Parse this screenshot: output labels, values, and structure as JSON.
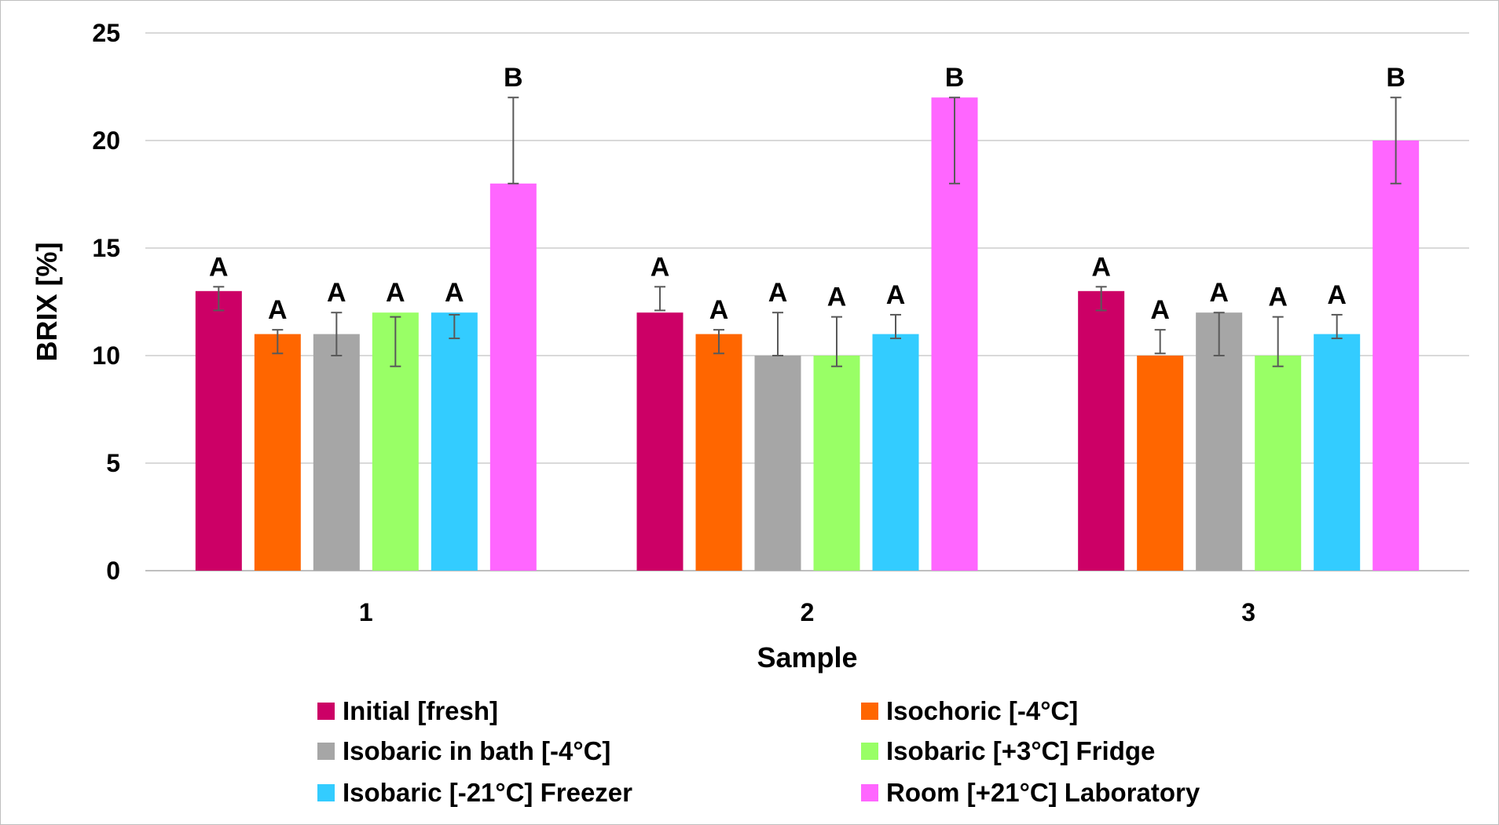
{
  "chart_data": {
    "type": "bar",
    "title": "",
    "xlabel": "Sample",
    "ylabel": "BRIX [%]",
    "ylim": [
      0,
      25
    ],
    "yticks": [
      0,
      5,
      10,
      15,
      20,
      25
    ],
    "grid": true,
    "legend_position": "bottom",
    "categories": [
      "1",
      "2",
      "3"
    ],
    "series": [
      {
        "name": "Initial [fresh]",
        "color": "#cc0066",
        "values": [
          13,
          12,
          13
        ],
        "error": [
          [
            12.1,
            13.2
          ],
          [
            12.1,
            13.2
          ],
          [
            12.1,
            13.2
          ]
        ],
        "labels": [
          "A",
          "A",
          "A"
        ]
      },
      {
        "name": "Isochoric [-4°C]",
        "color": "#ff6600",
        "values": [
          11,
          11,
          10
        ],
        "error": [
          [
            10.1,
            11.2
          ],
          [
            10.1,
            11.2
          ],
          [
            10.1,
            11.2
          ]
        ],
        "labels": [
          "A",
          "A",
          "A"
        ]
      },
      {
        "name": "Isobaric in bath [-4°C]",
        "color": "#a6a6a6",
        "values": [
          11,
          10,
          12
        ],
        "error": [
          [
            10.0,
            12.0
          ],
          [
            10.0,
            12.0
          ],
          [
            10.0,
            12.0
          ]
        ],
        "labels": [
          "A",
          "A",
          "A"
        ]
      },
      {
        "name": "Isobaric [+3°C]  Fridge",
        "color": "#99ff66",
        "values": [
          12,
          10,
          10
        ],
        "error": [
          [
            9.5,
            11.8
          ],
          [
            9.5,
            11.8
          ],
          [
            9.5,
            11.8
          ]
        ],
        "labels": [
          "A",
          "A",
          "A"
        ]
      },
      {
        "name": "Isobaric [-21°C]  Freezer",
        "color": "#33ccff",
        "values": [
          12,
          11,
          11
        ],
        "error": [
          [
            10.8,
            11.9
          ],
          [
            10.8,
            11.9
          ],
          [
            10.8,
            11.9
          ]
        ],
        "labels": [
          "A",
          "A",
          "A"
        ]
      },
      {
        "name": "Room [+21°C] Laboratory",
        "color": "#ff66ff",
        "values": [
          18,
          22,
          20
        ],
        "error": [
          [
            18,
            22
          ],
          [
            18,
            22
          ],
          [
            18,
            22
          ]
        ],
        "labels": [
          "B",
          "B",
          "B"
        ]
      }
    ]
  }
}
